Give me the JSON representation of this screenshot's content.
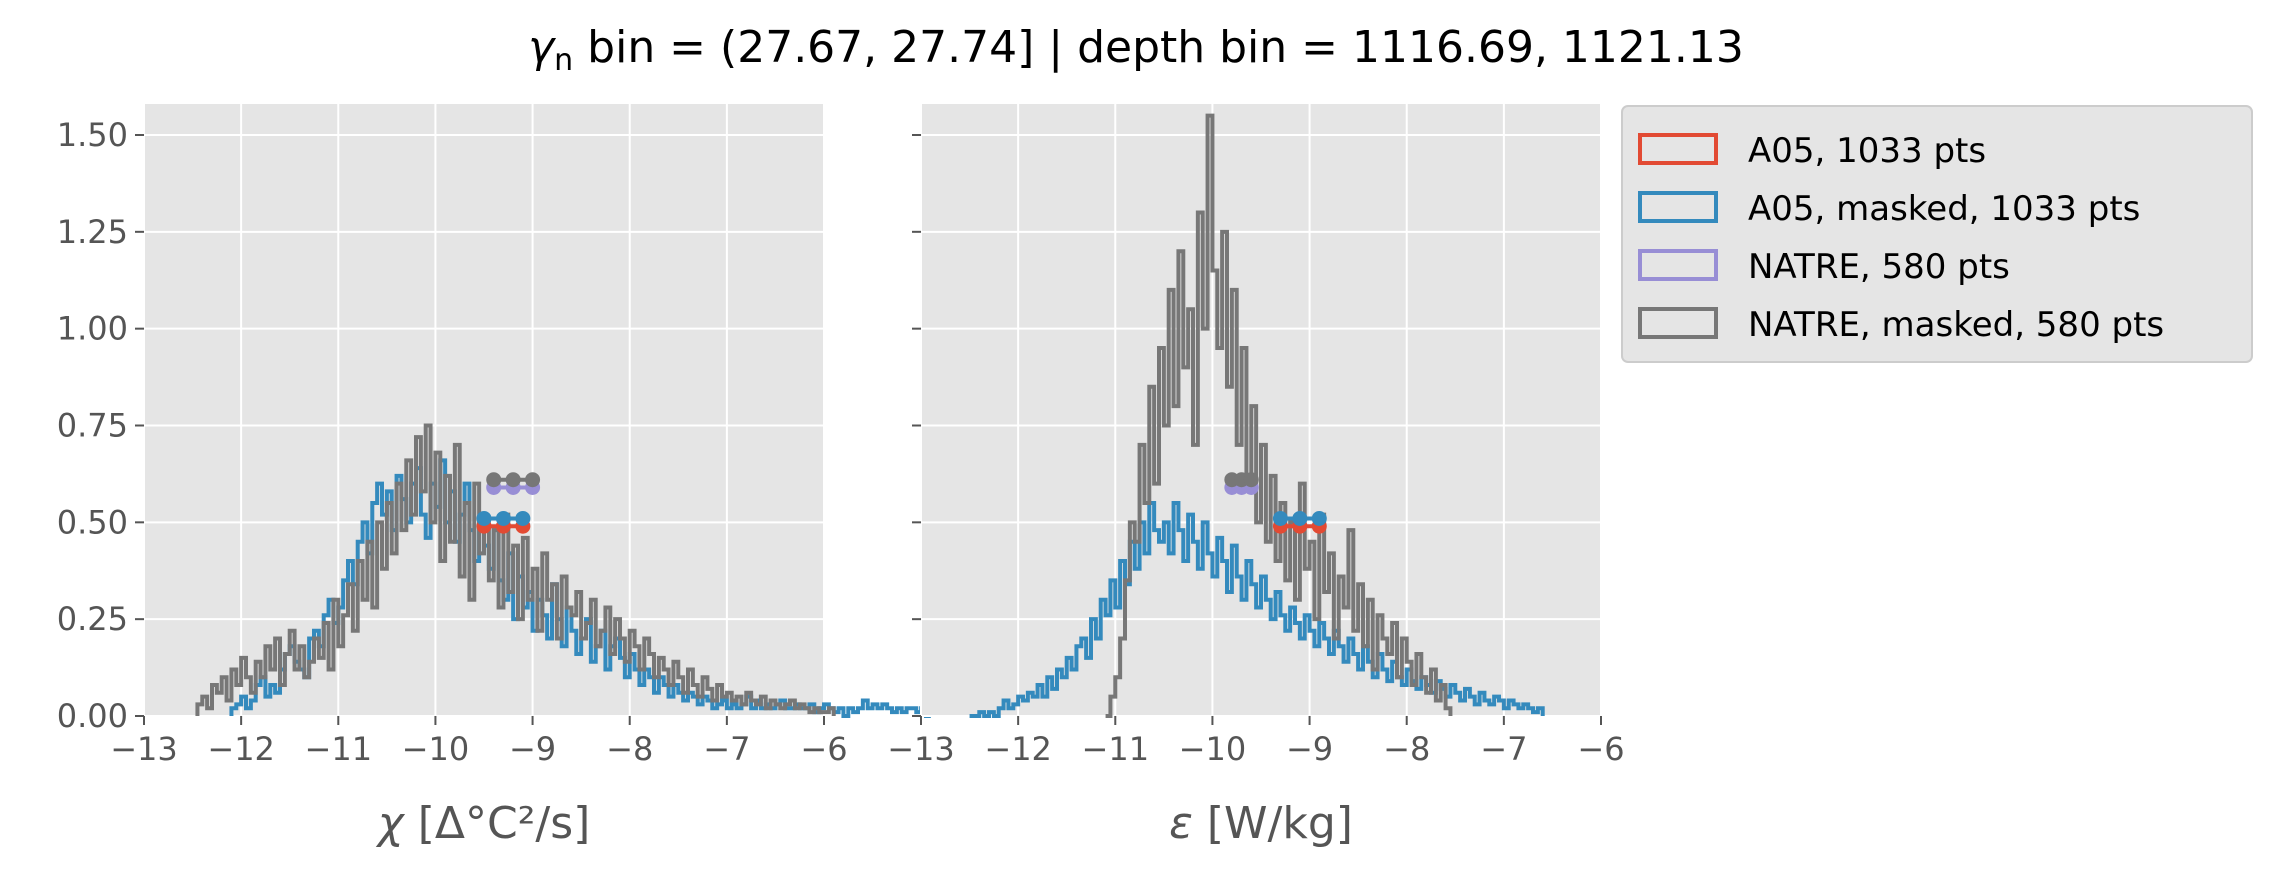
{
  "figure": {
    "title_symbol": "γ",
    "title_subscript": "n",
    "title_rest": " bin = (27.67, 27.74] | depth bin = 1116.69, 1121.13"
  },
  "colors": {
    "panel_bg": "#E5E5E5",
    "grid": "#FFFFFF",
    "A05": "#E24A33",
    "A05_masked": "#348ABD",
    "NATRE": "#988ED5",
    "NATRE_masked": "#777777"
  },
  "legend": [
    {
      "label": "A05, 1033 pts",
      "color_key": "A05"
    },
    {
      "label": "A05, masked,  1033 pts",
      "color_key": "A05_masked"
    },
    {
      "label": "NATRE, 580 pts",
      "color_key": "NATRE"
    },
    {
      "label": "NATRE, masked,  580 pts",
      "color_key": "NATRE_masked"
    }
  ],
  "chart_data": [
    {
      "type": "histogram",
      "xlabel_symbol": "χ",
      "xlabel_rest": " [Δ°C²/s]",
      "xlim": [
        -13,
        -6
      ],
      "ylim": [
        0,
        1.58
      ],
      "xticks": [
        -13,
        -12,
        -11,
        -10,
        -9,
        -8,
        -7,
        -6
      ],
      "xtick_labels": [
        "−13",
        "−12",
        "−11",
        "−10",
        "−9",
        "−8",
        "−7",
        "−6"
      ],
      "yticks": [
        0,
        0.25,
        0.5,
        0.75,
        1.0,
        1.25,
        1.5
      ],
      "ytick_labels": [
        "0.00",
        "0.25",
        "0.50",
        "0.75",
        "1.00",
        "1.25",
        "1.50"
      ],
      "grid": true,
      "series": [
        {
          "key": "A05_masked",
          "bin_start": -12.1,
          "bin_width": 0.05,
          "values": [
            0.02,
            0.03,
            0.05,
            0.02,
            0.04,
            0.08,
            0.1,
            0.05,
            0.08,
            0.06,
            0.12,
            0.16,
            0.18,
            0.14,
            0.12,
            0.1,
            0.2,
            0.22,
            0.18,
            0.26,
            0.3,
            0.24,
            0.28,
            0.35,
            0.4,
            0.34,
            0.45,
            0.5,
            0.42,
            0.55,
            0.6,
            0.52,
            0.58,
            0.48,
            0.62,
            0.56,
            0.5,
            0.6,
            0.64,
            0.52,
            0.46,
            0.6,
            0.54,
            0.66,
            0.5,
            0.58,
            0.45,
            0.52,
            0.6,
            0.48,
            0.4,
            0.5,
            0.44,
            0.38,
            0.48,
            0.35,
            0.3,
            0.42,
            0.25,
            0.36,
            0.28,
            0.32,
            0.22,
            0.3,
            0.26,
            0.2,
            0.34,
            0.25,
            0.18,
            0.28,
            0.22,
            0.16,
            0.2,
            0.25,
            0.14,
            0.18,
            0.22,
            0.12,
            0.18,
            0.2,
            0.15,
            0.1,
            0.16,
            0.12,
            0.08,
            0.12,
            0.1,
            0.06,
            0.1,
            0.08,
            0.05,
            0.08,
            0.06,
            0.04,
            0.06,
            0.05,
            0.03,
            0.05,
            0.04,
            0.02,
            0.03,
            0.04,
            0.02,
            0.03,
            0.02,
            0.03,
            0.05,
            0.02,
            0.04,
            0.02,
            0.03,
            0.02,
            0.03,
            0.04,
            0.02,
            0.02,
            0.03,
            0.02,
            0.02,
            0.03,
            0.01,
            0.02,
            0.03,
            0.02,
            0.01,
            0.02,
            0.0,
            0.02,
            0.01,
            0.02,
            0.04,
            0.02,
            0.03,
            0.02,
            0.03,
            0.02,
            0.01,
            0.02,
            0.01,
            0.02,
            0.02,
            0.01,
            0.02,
            0.0
          ]
        },
        {
          "key": "NATRE_masked",
          "bin_start": -12.45,
          "bin_width": 0.05,
          "values": [
            0.03,
            0.05,
            0.02,
            0.08,
            0.06,
            0.1,
            0.04,
            0.12,
            0.08,
            0.15,
            0.1,
            0.06,
            0.14,
            0.1,
            0.18,
            0.12,
            0.2,
            0.08,
            0.16,
            0.22,
            0.12,
            0.18,
            0.1,
            0.14,
            0.2,
            0.15,
            0.24,
            0.12,
            0.3,
            0.18,
            0.26,
            0.34,
            0.22,
            0.4,
            0.3,
            0.45,
            0.28,
            0.5,
            0.38,
            0.55,
            0.42,
            0.6,
            0.48,
            0.66,
            0.52,
            0.72,
            0.58,
            0.75,
            0.5,
            0.68,
            0.4,
            0.62,
            0.45,
            0.7,
            0.36,
            0.55,
            0.3,
            0.6,
            0.42,
            0.5,
            0.35,
            0.48,
            0.28,
            0.52,
            0.32,
            0.44,
            0.25,
            0.46,
            0.3,
            0.38,
            0.22,
            0.42,
            0.3,
            0.34,
            0.2,
            0.36,
            0.28,
            0.26,
            0.32,
            0.2,
            0.24,
            0.3,
            0.18,
            0.22,
            0.28,
            0.16,
            0.25,
            0.2,
            0.14,
            0.22,
            0.18,
            0.12,
            0.2,
            0.16,
            0.1,
            0.15,
            0.12,
            0.08,
            0.14,
            0.1,
            0.06,
            0.12,
            0.08,
            0.05,
            0.1,
            0.07,
            0.04,
            0.08,
            0.05,
            0.06,
            0.04,
            0.05,
            0.03,
            0.06,
            0.04,
            0.03,
            0.05,
            0.02,
            0.04,
            0.03,
            0.02,
            0.03,
            0.04,
            0.02,
            0.03,
            0.02,
            0.01,
            0.02,
            0.01,
            0.01,
            0.02
          ]
        }
      ],
      "points": [
        {
          "key": "A05",
          "x": [
            -9.5,
            -9.3,
            -9.1
          ],
          "y": 0.49
        },
        {
          "key": "A05_masked",
          "x": [
            -9.5,
            -9.3,
            -9.1
          ],
          "y": 0.51
        },
        {
          "key": "NATRE",
          "x": [
            -9.4,
            -9.2,
            -9.0
          ],
          "y": 0.59
        },
        {
          "key": "NATRE_masked",
          "x": [
            -9.4,
            -9.2,
            -9.0
          ],
          "y": 0.61
        }
      ]
    },
    {
      "type": "histogram",
      "xlabel_symbol": "ε",
      "xlabel_rest": " [W/kg]",
      "xlim": [
        -13,
        -6
      ],
      "ylim": [
        0,
        1.58
      ],
      "xticks": [
        -13,
        -12,
        -11,
        -10,
        -9,
        -8,
        -7,
        -6
      ],
      "xtick_labels": [
        "−13",
        "−12",
        "−11",
        "−10",
        "−9",
        "−8",
        "−7",
        "−6"
      ],
      "yticks": [
        0,
        0.25,
        0.5,
        0.75,
        1.0,
        1.25,
        1.5
      ],
      "ytick_labels": [
        "",
        "",
        "",
        "",
        "",
        "",
        ""
      ],
      "grid": true,
      "series": [
        {
          "key": "A05_masked",
          "bin_start": -12.5,
          "bin_width": 0.05,
          "values": [
            0.0,
            0.0,
            0.01,
            0.0,
            0.01,
            0.0,
            0.02,
            0.04,
            0.02,
            0.03,
            0.05,
            0.04,
            0.06,
            0.05,
            0.08,
            0.05,
            0.1,
            0.07,
            0.12,
            0.1,
            0.15,
            0.12,
            0.18,
            0.2,
            0.15,
            0.25,
            0.2,
            0.3,
            0.26,
            0.35,
            0.28,
            0.4,
            0.34,
            0.45,
            0.38,
            0.5,
            0.42,
            0.55,
            0.48,
            0.45,
            0.5,
            0.42,
            0.55,
            0.48,
            0.4,
            0.52,
            0.45,
            0.38,
            0.5,
            0.42,
            0.36,
            0.46,
            0.4,
            0.32,
            0.44,
            0.36,
            0.3,
            0.4,
            0.34,
            0.28,
            0.36,
            0.3,
            0.25,
            0.32,
            0.26,
            0.22,
            0.28,
            0.24,
            0.2,
            0.26,
            0.22,
            0.18,
            0.24,
            0.2,
            0.16,
            0.22,
            0.18,
            0.14,
            0.2,
            0.16,
            0.12,
            0.18,
            0.14,
            0.1,
            0.16,
            0.12,
            0.09,
            0.14,
            0.1,
            0.08,
            0.12,
            0.09,
            0.07,
            0.1,
            0.08,
            0.06,
            0.09,
            0.07,
            0.05,
            0.08,
            0.06,
            0.04,
            0.07,
            0.05,
            0.03,
            0.06,
            0.04,
            0.03,
            0.05,
            0.04,
            0.02,
            0.04,
            0.03,
            0.02,
            0.03,
            0.02,
            0.01,
            0.02
          ]
        },
        {
          "key": "NATRE_masked",
          "bin_start": -11.1,
          "bin_width": 0.05,
          "values": [
            0.0,
            0.05,
            0.1,
            0.2,
            0.35,
            0.5,
            0.45,
            0.7,
            0.55,
            0.85,
            0.6,
            0.95,
            0.75,
            1.1,
            0.8,
            1.2,
            0.9,
            1.05,
            0.7,
            1.3,
            1.0,
            1.55,
            1.15,
            0.95,
            1.25,
            0.85,
            1.1,
            0.7,
            0.95,
            0.6,
            0.8,
            0.5,
            0.7,
            0.45,
            0.62,
            0.4,
            0.55,
            0.35,
            0.5,
            0.3,
            0.6,
            0.38,
            0.45,
            0.25,
            0.52,
            0.32,
            0.42,
            0.2,
            0.36,
            0.28,
            0.48,
            0.22,
            0.34,
            0.18,
            0.3,
            0.12,
            0.26,
            0.2,
            0.16,
            0.24,
            0.1,
            0.2,
            0.14,
            0.08,
            0.16,
            0.1,
            0.06,
            0.12,
            0.04,
            0.08,
            0.02
          ]
        }
      ],
      "points": [
        {
          "key": "A05",
          "x": [
            -9.3,
            -9.1,
            -8.9
          ],
          "y": 0.49
        },
        {
          "key": "A05_masked",
          "x": [
            -9.3,
            -9.1,
            -8.9
          ],
          "y": 0.51
        },
        {
          "key": "NATRE",
          "x": [
            -9.8,
            -9.7,
            -9.6
          ],
          "y": 0.59
        },
        {
          "key": "NATRE_masked",
          "x": [
            -9.8,
            -9.7,
            -9.6
          ],
          "y": 0.61
        }
      ]
    }
  ]
}
